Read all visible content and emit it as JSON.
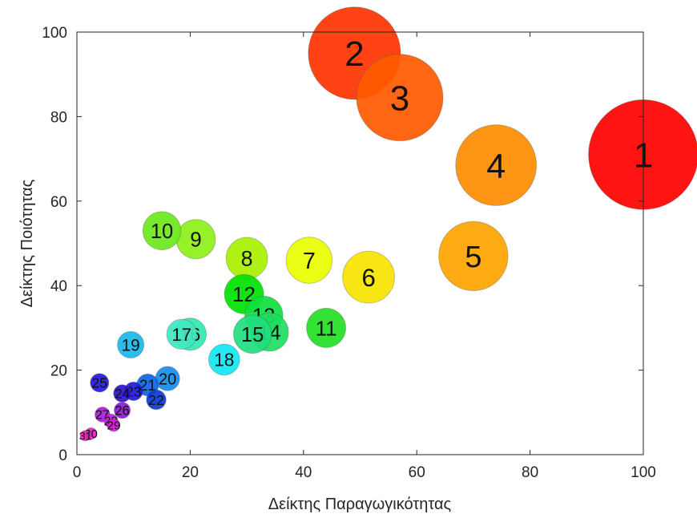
{
  "chart_data": {
    "type": "scatter",
    "title": "",
    "xlabel": "Δείκτης Παραγωγικότητας",
    "ylabel": "Δείκτης Ποιότητας",
    "xlim": [
      0,
      100
    ],
    "ylim": [
      0,
      100
    ],
    "xticks": [
      0,
      20,
      40,
      60,
      80,
      100
    ],
    "yticks": [
      0,
      20,
      40,
      60,
      80,
      100
    ],
    "grid": false,
    "legend": "none",
    "points": [
      {
        "label": "1",
        "x": 100,
        "y": 71,
        "size": 9.5,
        "color": "#ff0000"
      },
      {
        "label": "2",
        "x": 49,
        "y": 95,
        "size": 8.0,
        "color": "#ff3300"
      },
      {
        "label": "3",
        "x": 57,
        "y": 84.5,
        "size": 7.5,
        "color": "#ff5a00"
      },
      {
        "label": "4",
        "x": 74,
        "y": 68.5,
        "size": 7.0,
        "color": "#ff8c00"
      },
      {
        "label": "5",
        "x": 70,
        "y": 47,
        "size": 6.0,
        "color": "#ffa500"
      },
      {
        "label": "6",
        "x": 51.5,
        "y": 42,
        "size": 4.5,
        "color": "#f7e300"
      },
      {
        "label": "7",
        "x": 41,
        "y": 46,
        "size": 4.0,
        "color": "#e8ff00"
      },
      {
        "label": "8",
        "x": 30,
        "y": 46.5,
        "size": 3.6,
        "color": "#a8f000"
      },
      {
        "label": "9",
        "x": 21,
        "y": 51,
        "size": 3.4,
        "color": "#8cf018"
      },
      {
        "label": "10",
        "x": 15,
        "y": 53,
        "size": 3.3,
        "color": "#6de81c"
      },
      {
        "label": "11",
        "x": 44,
        "y": 30,
        "size": 3.4,
        "color": "#22e024"
      },
      {
        "label": "12",
        "x": 29.5,
        "y": 38,
        "size": 3.4,
        "color": "#00e200"
      },
      {
        "label": "13",
        "x": 33,
        "y": 33,
        "size": 3.3,
        "color": "#10e040"
      },
      {
        "label": "14",
        "x": 34,
        "y": 29,
        "size": 3.3,
        "color": "#1ce060"
      },
      {
        "label": "15",
        "x": 31,
        "y": 28.5,
        "size": 3.3,
        "color": "#20de80"
      },
      {
        "label": "16",
        "x": 20,
        "y": 28.5,
        "size": 2.8,
        "color": "#30e8b0"
      },
      {
        "label": "17",
        "x": 18.5,
        "y": 28.5,
        "size": 2.6,
        "color": "#40e8c0"
      },
      {
        "label": "18",
        "x": 26,
        "y": 22.5,
        "size": 2.7,
        "color": "#14e6f2"
      },
      {
        "label": "19",
        "x": 9.5,
        "y": 26,
        "size": 2.3,
        "color": "#18b8ec"
      },
      {
        "label": "20",
        "x": 16,
        "y": 18,
        "size": 2.1,
        "color": "#158ceb"
      },
      {
        "label": "21",
        "x": 12.5,
        "y": 16.5,
        "size": 1.9,
        "color": "#0a64e4"
      },
      {
        "label": "22",
        "x": 14,
        "y": 13,
        "size": 1.7,
        "color": "#0a38d8"
      },
      {
        "label": "23",
        "x": 10,
        "y": 15,
        "size": 1.6,
        "color": "#1a1cd8"
      },
      {
        "label": "24",
        "x": 8,
        "y": 14.5,
        "size": 1.5,
        "color": "#2a14c8"
      },
      {
        "label": "25",
        "x": 4,
        "y": 17,
        "size": 1.6,
        "color": "#2418e0"
      },
      {
        "label": "26",
        "x": 8,
        "y": 10.5,
        "size": 1.4,
        "color": "#8c18d8"
      },
      {
        "label": "27",
        "x": 4.5,
        "y": 9.5,
        "size": 1.3,
        "color": "#a81ce0"
      },
      {
        "label": "28",
        "x": 6,
        "y": 8,
        "size": 1.2,
        "color": "#c81ce0"
      },
      {
        "label": "29",
        "x": 6.5,
        "y": 7,
        "size": 1.1,
        "color": "#d81cd8"
      },
      {
        "label": "30",
        "x": 2.5,
        "y": 5,
        "size": 1.0,
        "color": "#e81cc8"
      },
      {
        "label": "31",
        "x": 1.5,
        "y": 4.5,
        "size": 0.9,
        "color": "#f01cb8"
      }
    ]
  }
}
